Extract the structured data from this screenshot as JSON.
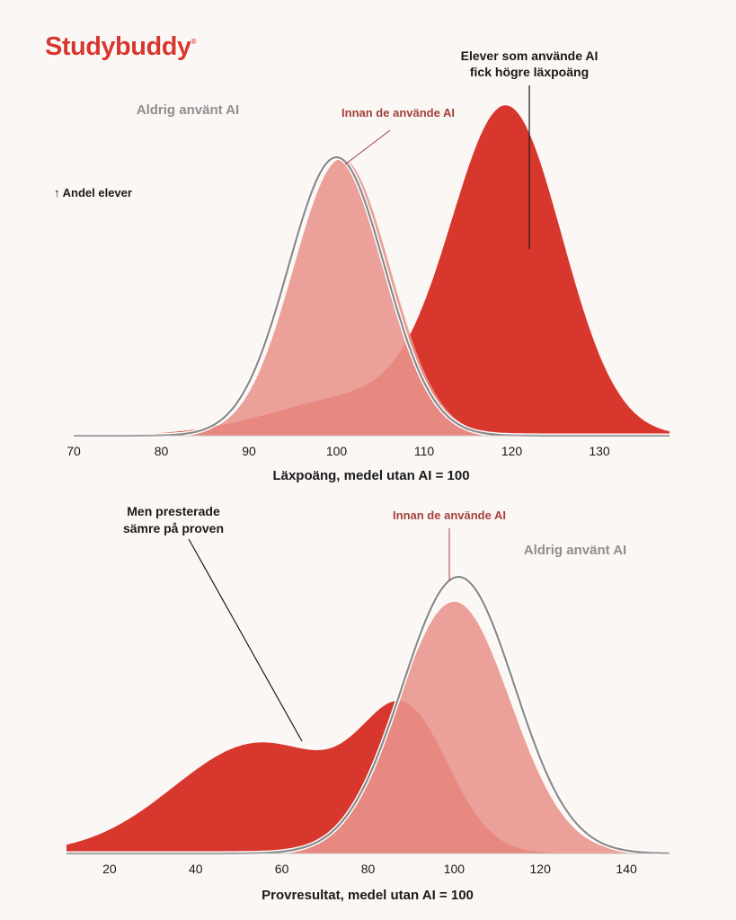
{
  "brand": {
    "name": "Studybuddy",
    "mark": "®"
  },
  "colors": {
    "background": "#fbf7f5",
    "ai_used": "#d8372e",
    "before_ai": "#e8948d",
    "never_ai_line": "#8a8a8a",
    "label_before": "#a3403a",
    "label_never": "#8f8f8f"
  },
  "chart_data": [
    {
      "type": "area",
      "xlabel": "Läxpoäng, medel utan AI = 100",
      "ylabel": "↑ Andel elever",
      "xlim": [
        70,
        138
      ],
      "xticks": [
        70,
        80,
        90,
        100,
        110,
        120,
        130
      ],
      "grid": false,
      "series": [
        {
          "name": "Aldrig använt AI",
          "style": "line",
          "components": [
            {
              "mean": 100,
              "sd": 5.5,
              "peak": 1.0
            }
          ]
        },
        {
          "name": "Innan de använde AI",
          "style": "fill",
          "components": [
            {
              "mean": 100.6,
              "sd": 5.5,
              "peak": 0.995
            }
          ]
        },
        {
          "name": "Elever som använde AI",
          "style": "fill",
          "components": [
            {
              "mean": 119.5,
              "sd": 6.3,
              "peak": 1.15
            },
            {
              "mean": 103,
              "sd": 10,
              "peak": 0.14
            }
          ]
        }
      ],
      "annotations": [
        {
          "text": "Aldrig använt AI",
          "x": 100,
          "series": "Aldrig använt AI"
        },
        {
          "text": "Innan de använde AI",
          "x": 101,
          "series": "Innan de använde AI"
        },
        {
          "text": "Elever som använde AI fick högre läxpoäng",
          "lines": [
            "Elever som använde AI",
            "fick högre läxpoäng"
          ],
          "x": 122
        }
      ]
    },
    {
      "type": "area",
      "xlabel": "Provresultat, medel utan AI = 100",
      "xlim": [
        10,
        150
      ],
      "xticks": [
        20,
        40,
        60,
        80,
        100,
        120,
        140
      ],
      "grid": false,
      "series": [
        {
          "name": "Aldrig använt AI",
          "style": "line",
          "components": [
            {
              "mean": 101,
              "sd": 13,
              "peak": 1.0
            }
          ]
        },
        {
          "name": "Innan de använde AI",
          "style": "fill",
          "components": [
            {
              "mean": 100,
              "sd": 13,
              "peak": 0.91
            }
          ]
        },
        {
          "name": "Elever som använde AI",
          "style": "fill",
          "components": [
            {
              "mean": 89,
              "sd": 10,
              "peak": 0.45
            },
            {
              "mean": 55,
              "sd": 20,
              "peak": 0.4
            }
          ]
        }
      ],
      "annotations": [
        {
          "text": "Men presterade sämre på proven",
          "lines": [
            "Men presterade",
            "sämre på proven"
          ],
          "x": 65
        },
        {
          "text": "Innan de använde AI",
          "x": 100
        },
        {
          "text": "Aldrig använt AI",
          "x": 130
        }
      ]
    }
  ]
}
